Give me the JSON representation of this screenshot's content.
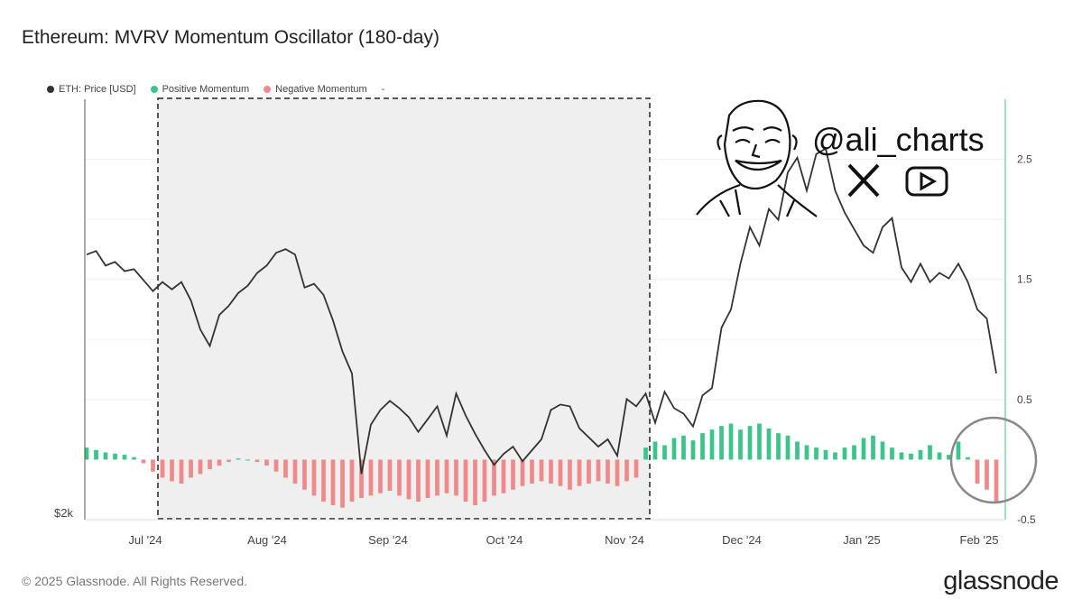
{
  "title": "Ethereum: MVRV Momentum Oscillator (180-day)",
  "legend": [
    {
      "label": "ETH: Price [USD]",
      "color": "#333333"
    },
    {
      "label": "Positive Momentum",
      "color": "#3cc48a"
    },
    {
      "label": "Negative Momentum",
      "color": "#f08a8a"
    },
    {
      "label": "-",
      "color": ""
    }
  ],
  "footer": "© 2025 Glassnode. All Rights Reserved.",
  "brand": "glassnode",
  "watermark": {
    "handle": "@ali_charts",
    "icons": [
      "x-icon",
      "youtube-icon",
      "cartoon-face-icon"
    ]
  },
  "chart_data": {
    "type": "line",
    "x_labels": [
      "Jul '24",
      "Aug '24",
      "Sep '24",
      "Oct '24",
      "Nov '24",
      "Dec '24",
      "Jan '25",
      "Feb '25"
    ],
    "left_axis": {
      "label": "$2k"
    },
    "right_axis": {
      "ticks": [
        "2.5",
        "1.5",
        "0.5",
        "-0.5"
      ],
      "ylim": [
        -0.5,
        3.0
      ]
    },
    "highlight": {
      "from": "2024-06-28",
      "to": "2024-11-08",
      "style": "dashed-box"
    },
    "series_price": {
      "name": "ETH: Price [USD]",
      "unit": "USD",
      "values": [
        3450,
        3470,
        3390,
        3410,
        3360,
        3370,
        3310,
        3250,
        3300,
        3260,
        3300,
        3200,
        3040,
        2950,
        3120,
        3170,
        3240,
        3280,
        3350,
        3390,
        3460,
        3480,
        3450,
        3270,
        3290,
        3230,
        3090,
        2920,
        2800,
        2250,
        2520,
        2600,
        2650,
        2610,
        2560,
        2480,
        2550,
        2620,
        2460,
        2690,
        2570,
        2470,
        2380,
        2300,
        2360,
        2400,
        2320,
        2380,
        2440,
        2600,
        2630,
        2620,
        2500,
        2450,
        2400,
        2440,
        2350,
        2660,
        2620,
        2690,
        2530,
        2700,
        2610,
        2580,
        2510,
        2680,
        2720,
        3050,
        3150,
        3400,
        3600,
        3500,
        3700,
        3640,
        3900,
        3980,
        3800,
        4000,
        4030,
        3800,
        3680,
        3590,
        3500,
        3460,
        3600,
        3650,
        3380,
        3300,
        3400,
        3300,
        3350,
        3320,
        3400,
        3300,
        3150,
        3100,
        2800
      ],
      "y_domain": [
        2000,
        4300
      ]
    },
    "series_momentum": {
      "name": "MVRV Momentum Oscillator",
      "values": [
        0.1,
        0.08,
        0.06,
        0.05,
        0.04,
        0.02,
        -0.03,
        -0.1,
        -0.15,
        -0.18,
        -0.2,
        -0.15,
        -0.12,
        -0.08,
        -0.05,
        -0.02,
        0.01,
        0.0,
        -0.02,
        -0.05,
        -0.1,
        -0.15,
        -0.2,
        -0.25,
        -0.3,
        -0.35,
        -0.38,
        -0.4,
        -0.35,
        -0.32,
        -0.3,
        -0.28,
        -0.26,
        -0.3,
        -0.33,
        -0.35,
        -0.32,
        -0.3,
        -0.28,
        -0.3,
        -0.35,
        -0.38,
        -0.35,
        -0.3,
        -0.28,
        -0.25,
        -0.22,
        -0.2,
        -0.18,
        -0.2,
        -0.22,
        -0.25,
        -0.22,
        -0.2,
        -0.18,
        -0.2,
        -0.22,
        -0.18,
        -0.15,
        0.1,
        0.15,
        0.12,
        0.18,
        0.2,
        0.16,
        0.22,
        0.25,
        0.28,
        0.3,
        0.25,
        0.28,
        0.3,
        0.26,
        0.22,
        0.2,
        0.15,
        0.12,
        0.1,
        0.08,
        0.06,
        0.1,
        0.12,
        0.18,
        0.2,
        0.15,
        0.1,
        0.06,
        0.05,
        0.08,
        0.12,
        0.06,
        0.04,
        0.15,
        0.02,
        -0.2,
        -0.25,
        -0.35
      ],
      "positive_color": "#3cc48a",
      "negative_color": "#f08a8a"
    }
  }
}
